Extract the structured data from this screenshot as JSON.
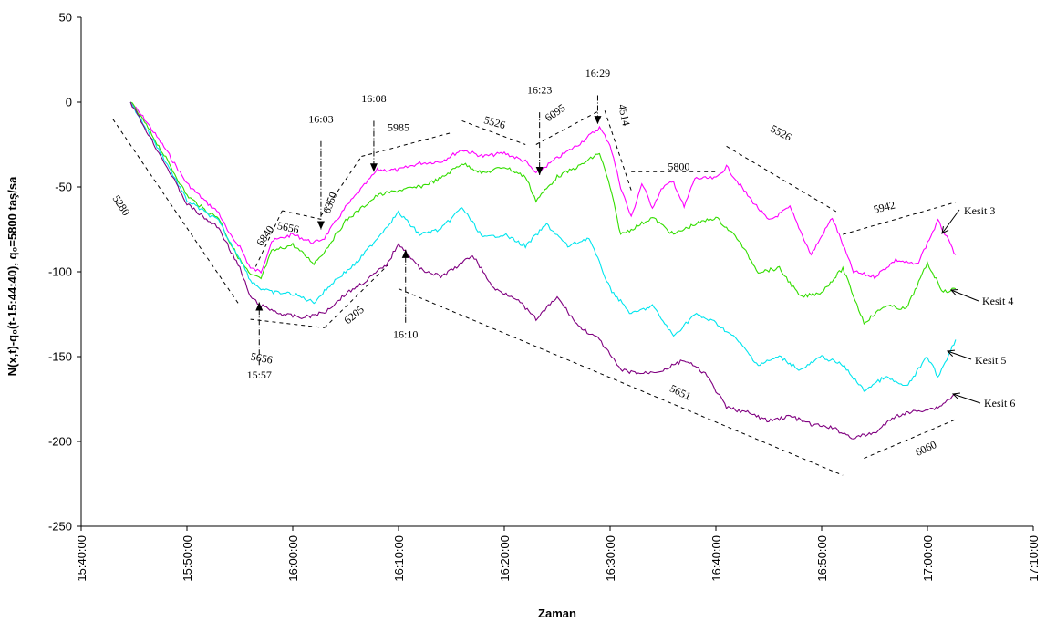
{
  "chart_data": {
    "type": "line",
    "title": "",
    "xlabel": "Zaman",
    "ylabel": "N(x,t)-q₀(t-15:44:40),  q₀=5800 taş/sa",
    "xlim": [
      "15:40:00",
      "17:10:00"
    ],
    "ylim": [
      -250,
      50
    ],
    "x_ticks": [
      "15:40:00",
      "15:50:00",
      "16:00:00",
      "16:10:00",
      "16:20:00",
      "16:30:00",
      "16:40:00",
      "16:50:00",
      "17:00:00",
      "17:10:00"
    ],
    "y_ticks": [
      50,
      0,
      -50,
      -100,
      -150,
      -200,
      -250
    ],
    "grid": false,
    "series": [
      {
        "name": "Kesit 3",
        "color": "#ff00ff",
        "points": [
          [
            "15:44:40",
            0
          ],
          [
            "15:46:00",
            -10
          ],
          [
            "15:48:00",
            -28
          ],
          [
            "15:50:00",
            -48
          ],
          [
            "15:52:00",
            -60
          ],
          [
            "15:53:00",
            -65
          ],
          [
            "15:54:00",
            -78
          ],
          [
            "15:55:00",
            -85
          ],
          [
            "15:56:00",
            -98
          ],
          [
            "15:57:00",
            -100
          ],
          [
            "15:58:00",
            -82
          ],
          [
            "16:00:00",
            -78
          ],
          [
            "16:02:00",
            -83
          ],
          [
            "16:03:00",
            -80
          ],
          [
            "16:05:00",
            -62
          ],
          [
            "16:08:00",
            -40
          ],
          [
            "16:10:00",
            -40
          ],
          [
            "16:12:00",
            -36
          ],
          [
            "16:14:00",
            -35
          ],
          [
            "16:16:00",
            -28
          ],
          [
            "16:18:00",
            -32
          ],
          [
            "16:20:00",
            -30
          ],
          [
            "16:22:00",
            -35
          ],
          [
            "16:23:00",
            -42
          ],
          [
            "16:25:00",
            -33
          ],
          [
            "16:27:00",
            -25
          ],
          [
            "16:29:00",
            -15
          ],
          [
            "16:30:00",
            -25
          ],
          [
            "16:31:00",
            -50
          ],
          [
            "16:32:00",
            -68
          ],
          [
            "16:33:00",
            -48
          ],
          [
            "16:34:00",
            -62
          ],
          [
            "16:35:00",
            -50
          ],
          [
            "16:36:00",
            -47
          ],
          [
            "16:37:00",
            -62
          ],
          [
            "16:38:00",
            -45
          ],
          [
            "16:40:00",
            -45
          ],
          [
            "16:41:00",
            -38
          ],
          [
            "16:43:00",
            -55
          ],
          [
            "16:45:00",
            -70
          ],
          [
            "16:47:00",
            -62
          ],
          [
            "16:49:00",
            -90
          ],
          [
            "16:51:00",
            -68
          ],
          [
            "16:53:00",
            -100
          ],
          [
            "16:55:00",
            -103
          ],
          [
            "16:57:00",
            -93
          ],
          [
            "16:59:00",
            -96
          ],
          [
            "17:01:00",
            -70
          ],
          [
            "17:02:40",
            -90
          ]
        ]
      },
      {
        "name": "Kesit 4",
        "color": "#33dd00",
        "points": [
          [
            "15:44:40",
            0
          ],
          [
            "15:46:00",
            -12
          ],
          [
            "15:48:00",
            -33
          ],
          [
            "15:50:00",
            -55
          ],
          [
            "15:52:00",
            -65
          ],
          [
            "15:53:00",
            -68
          ],
          [
            "15:54:00",
            -82
          ],
          [
            "15:55:00",
            -93
          ],
          [
            "15:56:00",
            -102
          ],
          [
            "15:57:00",
            -104
          ],
          [
            "15:58:00",
            -88
          ],
          [
            "16:00:00",
            -84
          ],
          [
            "16:02:00",
            -95
          ],
          [
            "16:03:00",
            -88
          ],
          [
            "16:05:00",
            -70
          ],
          [
            "16:08:00",
            -55
          ],
          [
            "16:10:00",
            -52
          ],
          [
            "16:12:00",
            -50
          ],
          [
            "16:14:00",
            -45
          ],
          [
            "16:16:00",
            -36
          ],
          [
            "16:18:00",
            -42
          ],
          [
            "16:20:00",
            -38
          ],
          [
            "16:22:00",
            -44
          ],
          [
            "16:23:00",
            -58
          ],
          [
            "16:25:00",
            -44
          ],
          [
            "16:27:00",
            -38
          ],
          [
            "16:29:00",
            -30
          ],
          [
            "16:30:00",
            -50
          ],
          [
            "16:31:00",
            -78
          ],
          [
            "16:32:00",
            -75
          ],
          [
            "16:34:00",
            -68
          ],
          [
            "16:36:00",
            -78
          ],
          [
            "16:38:00",
            -72
          ],
          [
            "16:40:00",
            -68
          ],
          [
            "16:42:00",
            -80
          ],
          [
            "16:44:00",
            -100
          ],
          [
            "16:46:00",
            -98
          ],
          [
            "16:48:00",
            -115
          ],
          [
            "16:50:00",
            -112
          ],
          [
            "16:52:00",
            -98
          ],
          [
            "16:54:00",
            -130
          ],
          [
            "16:56:00",
            -120
          ],
          [
            "16:58:00",
            -122
          ],
          [
            "17:00:00",
            -95
          ],
          [
            "17:01:30",
            -112
          ],
          [
            "17:02:40",
            -110
          ]
        ]
      },
      {
        "name": "Kesit 5",
        "color": "#00e5ee",
        "points": [
          [
            "15:44:40",
            0
          ],
          [
            "15:46:00",
            -14
          ],
          [
            "15:48:00",
            -35
          ],
          [
            "15:50:00",
            -58
          ],
          [
            "15:52:00",
            -66
          ],
          [
            "15:53:00",
            -70
          ],
          [
            "15:54:00",
            -82
          ],
          [
            "15:55:00",
            -92
          ],
          [
            "15:56:00",
            -105
          ],
          [
            "15:57:00",
            -110
          ],
          [
            "15:58:00",
            -112
          ],
          [
            "16:00:00",
            -113
          ],
          [
            "16:02:00",
            -118
          ],
          [
            "16:04:00",
            -105
          ],
          [
            "16:06:00",
            -95
          ],
          [
            "16:08:00",
            -80
          ],
          [
            "16:10:00",
            -65
          ],
          [
            "16:12:00",
            -78
          ],
          [
            "16:14:00",
            -75
          ],
          [
            "16:16:00",
            -62
          ],
          [
            "16:18:00",
            -80
          ],
          [
            "16:20:00",
            -78
          ],
          [
            "16:22:00",
            -85
          ],
          [
            "16:24:00",
            -72
          ],
          [
            "16:26:00",
            -85
          ],
          [
            "16:28:00",
            -80
          ],
          [
            "16:30:00",
            -110
          ],
          [
            "16:32:00",
            -125
          ],
          [
            "16:34:00",
            -120
          ],
          [
            "16:36:00",
            -138
          ],
          [
            "16:38:00",
            -125
          ],
          [
            "16:40:00",
            -130
          ],
          [
            "16:42:00",
            -140
          ],
          [
            "16:44:00",
            -155
          ],
          [
            "16:46:00",
            -150
          ],
          [
            "16:48:00",
            -158
          ],
          [
            "16:50:00",
            -150
          ],
          [
            "16:52:00",
            -155
          ],
          [
            "16:54:00",
            -170
          ],
          [
            "16:56:00",
            -162
          ],
          [
            "16:58:00",
            -168
          ],
          [
            "17:00:00",
            -150
          ],
          [
            "17:01:00",
            -162
          ],
          [
            "17:02:40",
            -140
          ]
        ]
      },
      {
        "name": "Kesit 6",
        "color": "#800080",
        "points": [
          [
            "15:44:40",
            0
          ],
          [
            "15:46:00",
            -15
          ],
          [
            "15:48:00",
            -37
          ],
          [
            "15:50:00",
            -60
          ],
          [
            "15:52:00",
            -70
          ],
          [
            "15:53:00",
            -74
          ],
          [
            "15:54:00",
            -86
          ],
          [
            "15:55:00",
            -98
          ],
          [
            "15:56:00",
            -115
          ],
          [
            "15:57:00",
            -120
          ],
          [
            "15:59:00",
            -125
          ],
          [
            "16:01:00",
            -127
          ],
          [
            "16:03:00",
            -124
          ],
          [
            "16:05:00",
            -113
          ],
          [
            "16:07:00",
            -105
          ],
          [
            "16:09:00",
            -95
          ],
          [
            "16:10:00",
            -83
          ],
          [
            "16:12:00",
            -98
          ],
          [
            "16:14:00",
            -103
          ],
          [
            "16:16:00",
            -95
          ],
          [
            "16:17:00",
            -90
          ],
          [
            "16:19:00",
            -110
          ],
          [
            "16:21:00",
            -115
          ],
          [
            "16:23:00",
            -128
          ],
          [
            "16:25:00",
            -115
          ],
          [
            "16:27:00",
            -132
          ],
          [
            "16:29:00",
            -140
          ],
          [
            "16:31:00",
            -158
          ],
          [
            "16:33:00",
            -160
          ],
          [
            "16:35:00",
            -158
          ],
          [
            "16:37:00",
            -152
          ],
          [
            "16:39:00",
            -160
          ],
          [
            "16:41:00",
            -180
          ],
          [
            "16:43:00",
            -183
          ],
          [
            "16:45:00",
            -188
          ],
          [
            "16:47:00",
            -185
          ],
          [
            "16:49:00",
            -190
          ],
          [
            "16:51:00",
            -192
          ],
          [
            "16:53:00",
            -198
          ],
          [
            "16:55:00",
            -195
          ],
          [
            "16:57:00",
            -185
          ],
          [
            "16:59:00",
            -182
          ],
          [
            "17:01:00",
            -180
          ],
          [
            "17:02:40",
            -172
          ]
        ]
      }
    ],
    "annotations": {
      "rates": [
        {
          "text": "5280",
          "t": "15:43:30",
          "v": -62,
          "rot": 57
        },
        {
          "text": "6840",
          "t": "15:57:40",
          "v": -80,
          "rot": -55
        },
        {
          "text": "5656",
          "t": "15:59:30",
          "v": -76,
          "rot": 12
        },
        {
          "text": "6350",
          "t": "16:03:50",
          "v": -60,
          "rot": -70
        },
        {
          "text": "5985",
          "t": "16:10:00",
          "v": -17,
          "rot": 0
        },
        {
          "text": "5526",
          "t": "16:19:00",
          "v": -14,
          "rot": 16
        },
        {
          "text": "6095",
          "t": "16:25:00",
          "v": -8,
          "rot": -35
        },
        {
          "text": "4514",
          "t": "16:31:00",
          "v": -8,
          "rot": 78
        },
        {
          "text": "5800",
          "t": "16:36:30",
          "v": -40,
          "rot": 0
        },
        {
          "text": "5526",
          "t": "16:46:00",
          "v": -20,
          "rot": 28
        },
        {
          "text": "5942",
          "t": "16:56:00",
          "v": -64,
          "rot": -14
        },
        {
          "text": "5656",
          "t": "15:57:00",
          "v": -153,
          "rot": 10
        },
        {
          "text": "6205",
          "t": "16:06:00",
          "v": -127,
          "rot": -40
        },
        {
          "text": "5651",
          "t": "16:36:30",
          "v": -173,
          "rot": 26
        },
        {
          "text": "6060",
          "t": "17:00:00",
          "v": -206,
          "rot": -25
        }
      ],
      "times": [
        {
          "text": "15:57",
          "t": "15:56:50",
          "v": -163
        },
        {
          "text": "16:03",
          "t": "16:02:40",
          "v": -12
        },
        {
          "text": "16:08",
          "t": "16:07:40",
          "v": 0
        },
        {
          "text": "16:10",
          "t": "16:10:40",
          "v": -139
        },
        {
          "text": "16:23",
          "t": "16:23:20",
          "v": 5
        },
        {
          "text": "16:29",
          "t": "16:28:50",
          "v": 15
        }
      ]
    }
  }
}
